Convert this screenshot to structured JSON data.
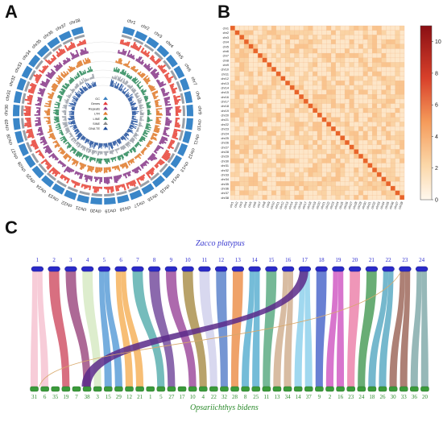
{
  "panels": {
    "a": "A",
    "b": "B",
    "c": "C"
  },
  "circos": {
    "chromosomes": [
      "chr1",
      "chr2",
      "chr3",
      "chr4",
      "chr5",
      "chr6",
      "chr7",
      "chr8",
      "chr9",
      "chr10",
      "chr11",
      "chr12",
      "chr13",
      "chr14",
      "chr15",
      "chr16",
      "chr17",
      "chr18",
      "chr19",
      "chr20",
      "chr21",
      "chr22",
      "chr23",
      "chr24",
      "chr25",
      "chr26",
      "chr27",
      "chr28",
      "chr29",
      "chr30",
      "chr31",
      "chr32",
      "chr33",
      "chr34",
      "chr35",
      "chr36",
      "chr37",
      "chr38"
    ],
    "legend": [
      "GC",
      "Genes",
      "Repeats",
      "LTR",
      "LINE",
      "SINE",
      "DNA TE"
    ],
    "track_colors": [
      "#3a7fc1",
      "#e83a3a",
      "#8a3a8a",
      "#e07a2a",
      "#2a8a5a",
      "#8a8a8a",
      "#1a4a9a"
    ]
  },
  "heatmap": {
    "labels": [
      "chr1",
      "chr2",
      "chr3",
      "chr4",
      "chr5",
      "chr6",
      "chr7",
      "chr8",
      "chr9",
      "chr10",
      "chr11",
      "chr12",
      "chr13",
      "chr14",
      "chr15",
      "chr16",
      "chr17",
      "chr18",
      "chr19",
      "chr20",
      "chr21",
      "chr22",
      "chr23",
      "chr24",
      "chr25",
      "chr26",
      "chr27",
      "chr28",
      "chr29",
      "chr30",
      "chr31",
      "chr32",
      "chr33",
      "chr34",
      "chr35",
      "chr36",
      "chr37",
      "chr38"
    ],
    "colorbar_ticks": [
      "0",
      "2",
      "4",
      "6",
      "8",
      "10"
    ],
    "colorbar_max": 11
  },
  "synteny": {
    "top_species": "Zacco platypus",
    "bottom_species": "Opsariichthys bidens",
    "top_labels": [
      "1",
      "2",
      "3",
      "4",
      "5",
      "6",
      "7",
      "8",
      "9",
      "10",
      "11",
      "12",
      "13",
      "14",
      "15",
      "16",
      "17",
      "18",
      "19",
      "20",
      "21",
      "22",
      "23",
      "24"
    ],
    "bottom_labels": [
      "31",
      "6",
      "35",
      "19",
      "7",
      "38",
      "3",
      "15",
      "29",
      "12",
      "21",
      "1",
      "5",
      "27",
      "17",
      "10",
      "4",
      "22",
      "32",
      "28",
      "8",
      "25",
      "11",
      "13",
      "34",
      "14",
      "37",
      "9",
      "2",
      "16",
      "23",
      "24",
      "18",
      "26",
      "30",
      "33",
      "36",
      "20"
    ]
  }
}
